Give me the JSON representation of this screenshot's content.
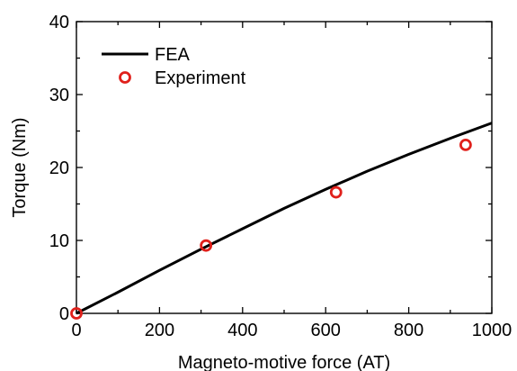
{
  "chart_data": {
    "type": "line",
    "title": "",
    "xlabel": "Magneto-motive force (AT)",
    "ylabel": "Torque (Nm)",
    "xlim": [
      0,
      1000
    ],
    "ylim": [
      0,
      40
    ],
    "xticks": [
      "0",
      "200",
      "400",
      "600",
      "800",
      "1000"
    ],
    "yticks": [
      "0",
      "10",
      "20",
      "30",
      "40"
    ],
    "grid": false,
    "legend_position": "top-left",
    "series": [
      {
        "name": "FEA",
        "kind": "line",
        "color": "#000000",
        "x": [
          0,
          100,
          200,
          300,
          400,
          500,
          600,
          700,
          800,
          900,
          1000
        ],
        "y": [
          0,
          2.9,
          5.9,
          8.8,
          11.6,
          14.4,
          17.0,
          19.5,
          21.8,
          24.0,
          26.1
        ]
      },
      {
        "name": "Experiment",
        "kind": "scatter",
        "marker": "open-circle",
        "color": "#e0201b",
        "x": [
          0,
          312,
          625,
          937
        ],
        "y": [
          0,
          9.3,
          16.6,
          23.1
        ]
      }
    ]
  }
}
